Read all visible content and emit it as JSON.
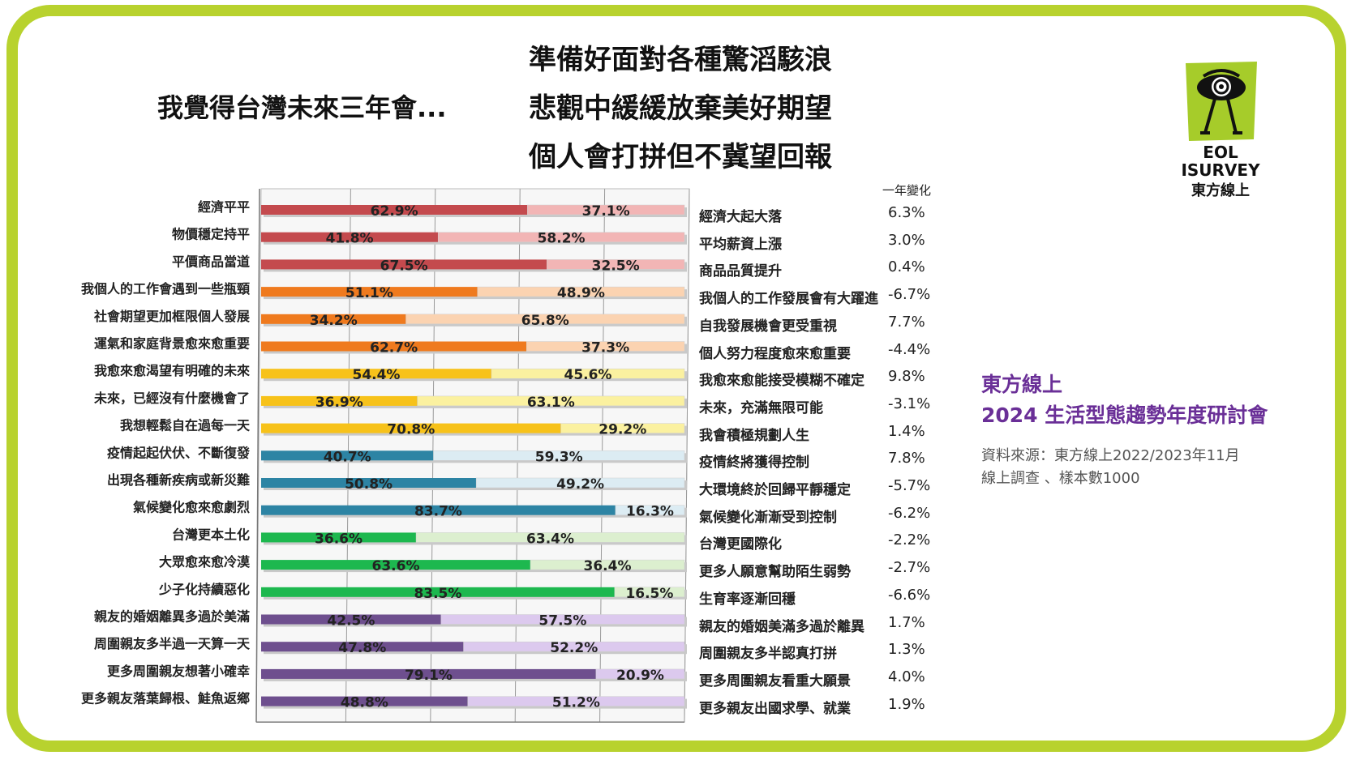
{
  "titles": {
    "left": "我覺得台灣未來三年會...",
    "right": [
      "準備好面對各種驚滔駭浪",
      "悲觀中緩緩放棄美好期望",
      "個人會打拼但不冀望回報"
    ]
  },
  "change_header": "一年變化",
  "logo": {
    "line1": "EOL",
    "line2": "ISURVEY",
    "line3": "東方線上"
  },
  "info": {
    "line1": "東方線上",
    "line2": "2024 生活型態趨勢年度研討會",
    "source1": "資料來源：東方線上2022/2023年11月",
    "source2": "線上調查 、樣本數1000"
  },
  "colors": {
    "frame": "#b8d22e",
    "red": [
      "#c44a4e",
      "#f2b5b5"
    ],
    "orange": [
      "#ef7a1e",
      "#fbd3b1"
    ],
    "yellow": [
      "#f7c21a",
      "#fbf1a0"
    ],
    "teal": [
      "#2d84a4",
      "#dcecf3"
    ],
    "green": [
      "#1db84f",
      "#dcefcf"
    ],
    "purple": [
      "#6e4f8e",
      "#dcc9ee"
    ],
    "info_title": "#6a2f97"
  },
  "chart_data": {
    "type": "bar",
    "orientation": "horizontal",
    "stacked": true,
    "xlim": [
      0,
      100
    ],
    "grid": true,
    "rows": [
      {
        "left": "經濟平平",
        "right": "經濟大起大落",
        "a": 62.9,
        "b": 37.1,
        "a_label": "62.9%",
        "b_label": "37.1%",
        "change": "6.3%",
        "group": "red"
      },
      {
        "left": "物價穩定持平",
        "right": "平均薪資上漲",
        "a": 41.8,
        "b": 58.2,
        "a_label": "41.8%",
        "b_label": "58.2%",
        "change": "3.0%",
        "group": "red"
      },
      {
        "left": "平價商品當道",
        "right": "商品品質提升",
        "a": 67.5,
        "b": 32.5,
        "a_label": "67.5%",
        "b_label": "32.5%",
        "change": "0.4%",
        "group": "red"
      },
      {
        "left": "我個人的工作會遇到一些瓶頸",
        "right": "我個人的工作發展會有大躍進",
        "a": 51.1,
        "b": 48.9,
        "a_label": "51.1%",
        "b_label": "48.9%",
        "change": "-6.7%",
        "group": "orange"
      },
      {
        "left": "社會期望更加框限個人發展",
        "right": "自我發展機會更受重視",
        "a": 34.2,
        "b": 65.8,
        "a_label": "34.2%",
        "b_label": "65.8%",
        "change": "7.7%",
        "group": "orange"
      },
      {
        "left": "運氣和家庭背景愈來愈重要",
        "right": "個人努力程度愈來愈重要",
        "a": 62.7,
        "b": 37.3,
        "a_label": "62.7%",
        "b_label": "37.3%",
        "change": "-4.4%",
        "group": "orange"
      },
      {
        "left": "我愈來愈渴望有明確的未來",
        "right": "我愈來愈能接受模糊不確定",
        "a": 54.4,
        "b": 45.6,
        "a_label": "54.4%",
        "b_label": "45.6%",
        "change": "9.8%",
        "group": "yellow"
      },
      {
        "left": "未來，已經沒有什麼機會了",
        "right": "未來，充滿無限可能",
        "a": 36.9,
        "b": 63.1,
        "a_label": "36.9%",
        "b_label": "63.1%",
        "change": "-3.1%",
        "group": "yellow"
      },
      {
        "left": "我想輕鬆自在過每一天",
        "right": "我會積極規劃人生",
        "a": 70.8,
        "b": 29.2,
        "a_label": "70.8%",
        "b_label": "29.2%",
        "change": "1.4%",
        "group": "yellow"
      },
      {
        "left": "疫情起起伏伏、不斷復發",
        "right": "疫情終將獲得控制",
        "a": 40.7,
        "b": 59.3,
        "a_label": "40.7%",
        "b_label": "59.3%",
        "change": "7.8%",
        "group": "teal"
      },
      {
        "left": "出現各種新疾病或新災難",
        "right": "大環境終於回歸平靜穩定",
        "a": 50.8,
        "b": 49.2,
        "a_label": "50.8%",
        "b_label": "49.2%",
        "change": "-5.7%",
        "group": "teal"
      },
      {
        "left": "氣候變化愈來愈劇烈",
        "right": "氣候變化漸漸受到控制",
        "a": 83.7,
        "b": 16.3,
        "a_label": "83.7%",
        "b_label": "16.3%",
        "change": "-6.2%",
        "group": "teal"
      },
      {
        "left": "台灣更本土化",
        "right": "台灣更國際化",
        "a": 36.6,
        "b": 63.4,
        "a_label": "36.6%",
        "b_label": "63.4%",
        "change": "-2.2%",
        "group": "green"
      },
      {
        "left": "大眾愈來愈冷漠",
        "right": "更多人願意幫助陌生弱勢",
        "a": 63.6,
        "b": 36.4,
        "a_label": "63.6%",
        "b_label": "36.4%",
        "change": "-2.7%",
        "group": "green"
      },
      {
        "left": "少子化持續惡化",
        "right": "生育率逐漸回穩",
        "a": 83.5,
        "b": 16.5,
        "a_label": "83.5%",
        "b_label": "16.5%",
        "change": "-6.6%",
        "group": "green"
      },
      {
        "left": "親友的婚姻離異多過於美滿",
        "right": "親友的婚姻美滿多過於離異",
        "a": 42.5,
        "b": 57.5,
        "a_label": "42.5%",
        "b_label": "57.5%",
        "change": "1.7%",
        "group": "purple"
      },
      {
        "left": "周圍親友多半過一天算一天",
        "right": "周圍親友多半認真打拼",
        "a": 47.8,
        "b": 52.2,
        "a_label": "47.8%",
        "b_label": "52.2%",
        "change": "1.3%",
        "group": "purple"
      },
      {
        "left": "更多周圍親友想著小確幸",
        "right": "更多周圍親友看重大願景",
        "a": 79.1,
        "b": 20.9,
        "a_label": "79.1%",
        "b_label": "20.9%",
        "change": "4.0%",
        "group": "purple"
      },
      {
        "left": "更多親友落葉歸根、鮭魚返鄉",
        "right": "更多親友出國求學、就業",
        "a": 48.8,
        "b": 51.2,
        "a_label": "48.8%",
        "b_label": "51.2%",
        "change": "1.9%",
        "group": "purple"
      }
    ]
  }
}
